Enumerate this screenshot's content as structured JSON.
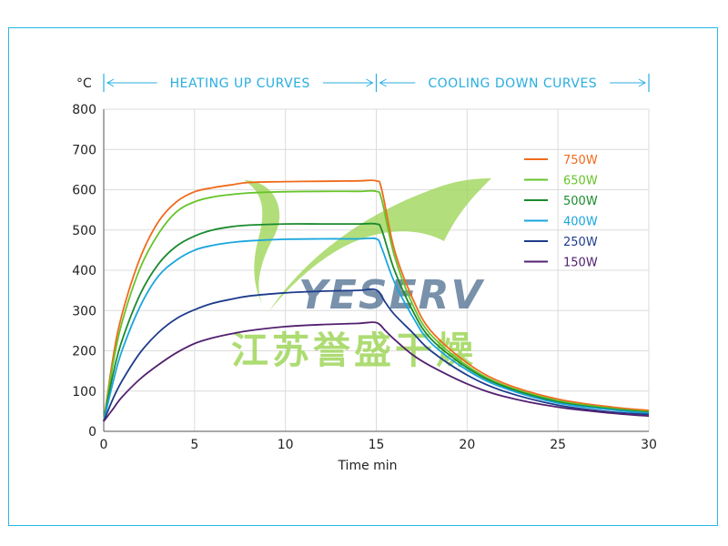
{
  "chart_data": {
    "type": "line",
    "title": "",
    "xlabel": "Time min",
    "ylabel": "°C",
    "xlim": [
      0,
      30
    ],
    "ylim": [
      0,
      800
    ],
    "x_ticks": [
      0,
      5,
      10,
      15,
      20,
      25,
      30
    ],
    "y_ticks": [
      0,
      100,
      200,
      300,
      400,
      500,
      600,
      700,
      800
    ],
    "grid": true,
    "legend_position": "top-right",
    "ranges": [
      {
        "label": "HEATING UP CURVES",
        "from": 0,
        "to": 15
      },
      {
        "label": "COOLING DOWN CURVES",
        "from": 15,
        "to": 30
      }
    ],
    "series": [
      {
        "name": "750W",
        "color": "#f06a1c",
        "x": [
          0,
          0.5,
          1,
          2,
          3,
          4,
          5,
          6,
          7,
          8,
          10,
          12,
          14,
          15,
          15.3,
          16,
          17,
          18,
          20,
          22,
          25,
          28,
          30
        ],
        "y": [
          25,
          180,
          290,
          430,
          520,
          570,
          595,
          605,
          612,
          618,
          620,
          621,
          622,
          622,
          600,
          450,
          330,
          250,
          170,
          120,
          80,
          60,
          52
        ]
      },
      {
        "name": "650W",
        "color": "#66c42b",
        "x": [
          0,
          0.5,
          1,
          2,
          3,
          4,
          5,
          6,
          7,
          8,
          10,
          12,
          14,
          15,
          15.3,
          16,
          17,
          18,
          20,
          22,
          25,
          28,
          30
        ],
        "y": [
          25,
          165,
          270,
          405,
          490,
          545,
          570,
          582,
          588,
          592,
          595,
          596,
          596,
          596,
          575,
          435,
          315,
          240,
          163,
          115,
          76,
          57,
          49
        ]
      },
      {
        "name": "500W",
        "color": "#1b8a2e",
        "x": [
          0,
          0.5,
          1,
          2,
          3,
          4,
          5,
          6,
          7,
          8,
          10,
          12,
          14,
          15,
          15.3,
          16,
          17,
          18,
          20,
          22,
          25,
          28,
          30
        ],
        "y": [
          25,
          140,
          225,
          340,
          415,
          460,
          485,
          500,
          508,
          512,
          515,
          515,
          515,
          515,
          500,
          400,
          300,
          230,
          158,
          112,
          73,
          55,
          47
        ]
      },
      {
        "name": "400W",
        "color": "#1aa6dd",
        "x": [
          0,
          0.5,
          1,
          2,
          3,
          4,
          5,
          6,
          7,
          8,
          10,
          12,
          14,
          15,
          15.3,
          16,
          17,
          18,
          20,
          22,
          25,
          28,
          30
        ],
        "y": [
          25,
          120,
          200,
          310,
          385,
          425,
          450,
          462,
          469,
          473,
          477,
          478,
          478,
          478,
          455,
          370,
          285,
          220,
          152,
          108,
          70,
          53,
          45
        ]
      },
      {
        "name": "250W",
        "color": "#1e3c8c",
        "x": [
          0,
          0.5,
          1,
          2,
          3,
          4,
          5,
          6,
          7,
          8,
          10,
          12,
          14,
          15,
          15.5,
          16,
          17,
          18,
          20,
          22,
          25,
          28,
          30
        ],
        "y": [
          25,
          80,
          125,
          195,
          245,
          280,
          302,
          318,
          328,
          336,
          344,
          348,
          350,
          351,
          320,
          290,
          245,
          200,
          140,
          100,
          65,
          48,
          42
        ]
      },
      {
        "name": "150W",
        "color": "#52206f",
        "x": [
          0,
          0.5,
          1,
          2,
          3,
          4,
          5,
          6,
          7,
          8,
          10,
          12,
          14,
          15,
          15.5,
          16,
          17,
          18,
          20,
          22,
          25,
          28,
          30
        ],
        "y": [
          25,
          55,
          85,
          130,
          165,
          195,
          218,
          232,
          242,
          250,
          260,
          265,
          268,
          270,
          250,
          228,
          190,
          162,
          118,
          87,
          60,
          45,
          38
        ]
      }
    ]
  },
  "watermark": {
    "brand": "YESERV",
    "company": "江苏誉盛干燥"
  }
}
